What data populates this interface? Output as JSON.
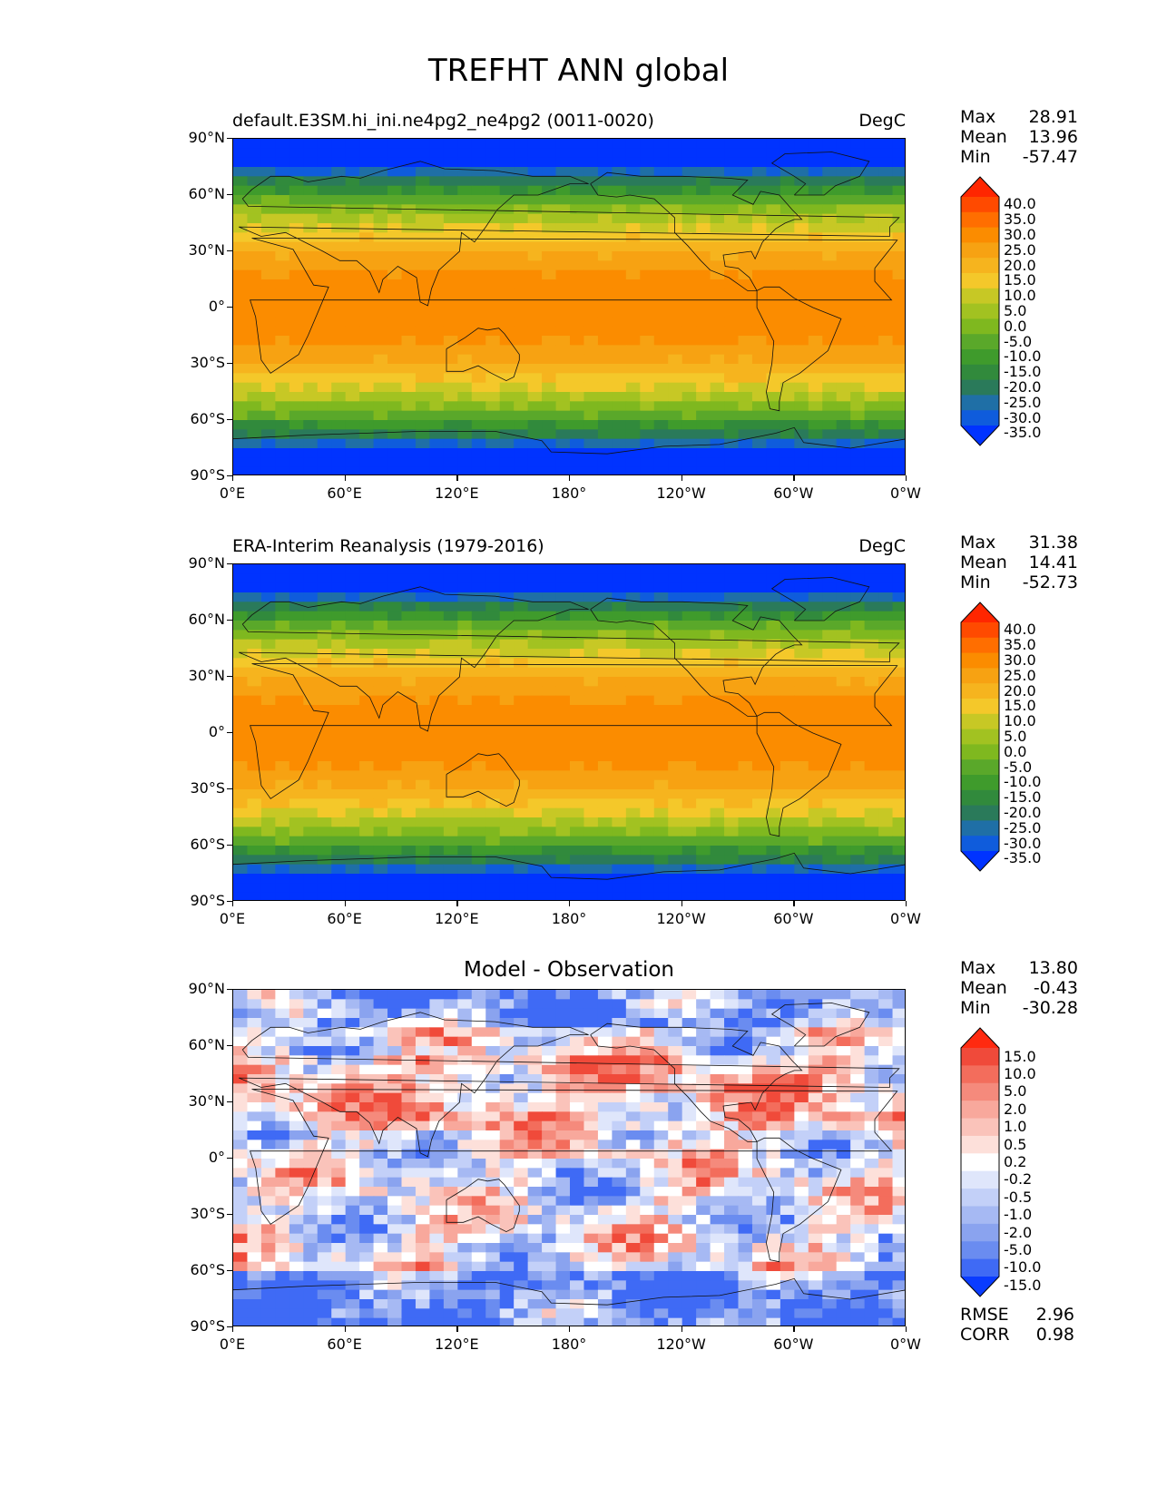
{
  "figure": {
    "title": "TREFHT ANN global"
  },
  "panels": [
    {
      "id": "test",
      "left_title": "default.E3SM.hi_ini.ne4pg2_ne4pg2 (0011-0020)",
      "center_title": "",
      "units": "DegC",
      "stats": [
        {
          "label": "Max",
          "value": "28.91"
        },
        {
          "label": "Mean",
          "value": "13.96"
        },
        {
          "label": "Min",
          "value": "-57.47"
        }
      ],
      "colorbar": {
        "levels": [
          "40.0",
          "35.0",
          "30.0",
          "25.0",
          "20.0",
          "15.0",
          "10.0",
          "5.0",
          "0.0",
          "-5.0",
          "-10.0",
          "-15.0",
          "-20.0",
          "-25.0",
          "-30.0",
          "-35.0"
        ],
        "colors": [
          "#ff2600",
          "#ff4a00",
          "#ff6e00",
          "#fb8c00",
          "#f7a212",
          "#f6b41e",
          "#f4c82a",
          "#c7c825",
          "#a2c221",
          "#7fb81f",
          "#5aa82a",
          "#3f9b2c",
          "#318a3c",
          "#2a7a5a",
          "#1f6fa6",
          "#0f5cdc",
          "#0033ff"
        ]
      },
      "lat_ticks": [
        "90°N",
        "60°N",
        "30°N",
        "0°",
        "30°S",
        "60°S",
        "90°S"
      ],
      "lon_ticks": [
        "0°E",
        "60°E",
        "120°E",
        "180°",
        "120°W",
        "60°W",
        "0°W"
      ]
    },
    {
      "id": "reference",
      "left_title": "ERA-Interim Reanalysis (1979-2016)",
      "center_title": "",
      "units": "DegC",
      "stats": [
        {
          "label": "Max",
          "value": "31.38"
        },
        {
          "label": "Mean",
          "value": "14.41"
        },
        {
          "label": "Min",
          "value": "-52.73"
        }
      ],
      "colorbar": {
        "levels": [
          "40.0",
          "35.0",
          "30.0",
          "25.0",
          "20.0",
          "15.0",
          "10.0",
          "5.0",
          "0.0",
          "-5.0",
          "-10.0",
          "-15.0",
          "-20.0",
          "-25.0",
          "-30.0",
          "-35.0"
        ],
        "colors": [
          "#ff2600",
          "#ff4a00",
          "#ff6e00",
          "#fb8c00",
          "#f7a212",
          "#f6b41e",
          "#f4c82a",
          "#c7c825",
          "#a2c221",
          "#7fb81f",
          "#5aa82a",
          "#3f9b2c",
          "#318a3c",
          "#2a7a5a",
          "#1f6fa6",
          "#0f5cdc",
          "#0033ff"
        ]
      },
      "lat_ticks": [
        "90°N",
        "60°N",
        "30°N",
        "0°",
        "30°S",
        "60°S",
        "90°S"
      ],
      "lon_ticks": [
        "0°E",
        "60°E",
        "120°E",
        "180°",
        "120°W",
        "60°W",
        "0°W"
      ]
    },
    {
      "id": "difference",
      "left_title": "",
      "center_title": "Model - Observation",
      "units": "",
      "stats": [
        {
          "label": "Max",
          "value": "13.80"
        },
        {
          "label": "Mean",
          "value": "-0.43"
        },
        {
          "label": "Min",
          "value": "-30.28"
        }
      ],
      "extra_stats": [
        {
          "label": "RMSE",
          "value": "2.96"
        },
        {
          "label": "CORR",
          "value": "0.98"
        }
      ],
      "colorbar": {
        "levels": [
          "15.0",
          "10.0",
          "5.0",
          "2.0",
          "1.0",
          "0.5",
          "0.2",
          "-0.2",
          "-0.5",
          "-1.0",
          "-2.0",
          "-5.0",
          "-10.0",
          "-15.0"
        ],
        "colors": [
          "#ff2a10",
          "#f04a3a",
          "#f36d5c",
          "#f58a7c",
          "#f8a89c",
          "#fac3ba",
          "#fde0da",
          "#ffffff",
          "#dfe6fb",
          "#c3d0f8",
          "#a6b9f3",
          "#8aa3ef",
          "#6a8cf0",
          "#3f6af5",
          "#0a3cff"
        ]
      },
      "lat_ticks": [
        "90°N",
        "60°N",
        "30°N",
        "0°",
        "30°S",
        "60°S",
        "90°S"
      ],
      "lon_ticks": [
        "0°E",
        "60°E",
        "120°E",
        "180°",
        "120°W",
        "60°W",
        "0°W"
      ]
    }
  ]
}
